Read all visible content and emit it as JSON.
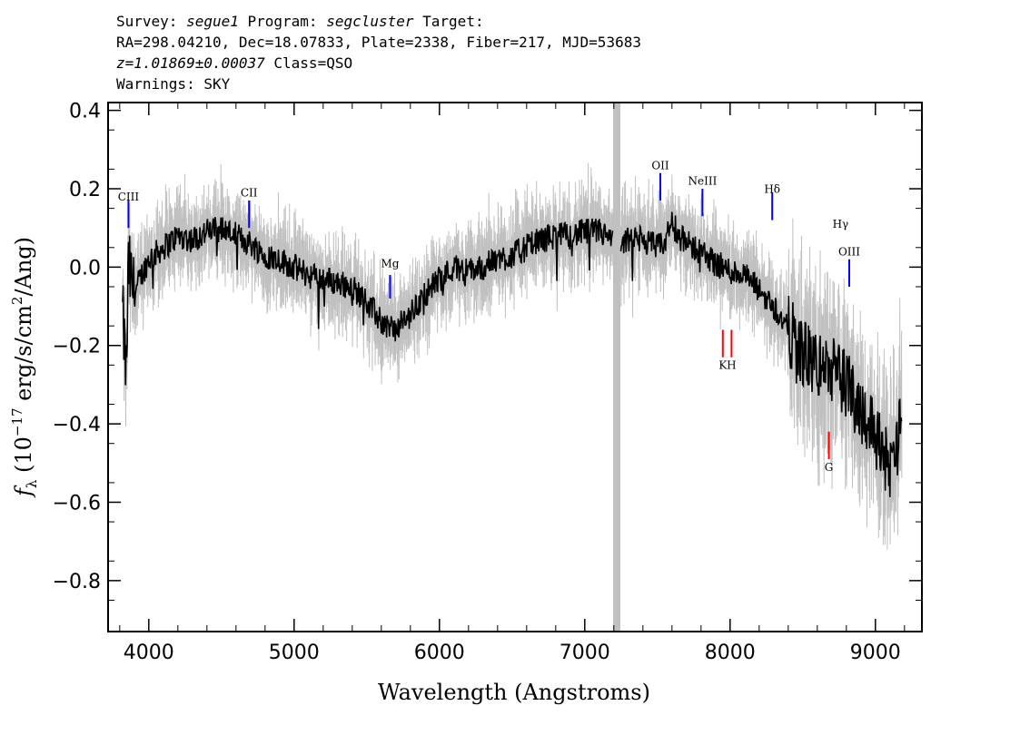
{
  "header": {
    "line1_prefix": "Survey: ",
    "survey": "segue1",
    "line1_mid": " Program: ",
    "program": "segcluster",
    "line1_suffix": " Target:",
    "line2": "RA=298.04210, Dec=18.07833, Plate=2338, Fiber=217, MJD=53683",
    "redshift": "z=1.01869±0.00037",
    "class_text": " Class=QSO",
    "warnings": "Warnings: SKY"
  },
  "chart_data": {
    "type": "line",
    "xlabel": "Wavelength (Angstroms)",
    "ylabel": "f_λ (10^-17 erg/s/cm²/Ang)",
    "xlim": [
      3720,
      9320
    ],
    "ylim": [
      -0.93,
      0.42
    ],
    "x_ticks": [
      4000,
      5000,
      6000,
      7000,
      8000,
      9000
    ],
    "y_ticks": [
      -0.8,
      -0.6,
      -0.4,
      -0.2,
      0.0,
      0.2,
      0.4
    ],
    "y_tick_labels": [
      "−0.8",
      "−0.6",
      "−0.4",
      "−0.2",
      "0.0",
      "0.2",
      "0.4"
    ],
    "masked_region": [
      7195,
      7245
    ],
    "series": [
      {
        "role": "spectrum",
        "color": "#000000",
        "points": [
          [
            3820,
            -0.12
          ],
          [
            3845,
            -0.28
          ],
          [
            3860,
            0.0
          ],
          [
            3900,
            -0.07
          ],
          [
            3950,
            -0.02
          ],
          [
            4000,
            0.02
          ],
          [
            4100,
            0.05
          ],
          [
            4200,
            0.08
          ],
          [
            4300,
            0.07
          ],
          [
            4400,
            0.09
          ],
          [
            4500,
            0.1
          ],
          [
            4600,
            0.08
          ],
          [
            4700,
            0.06
          ],
          [
            4800,
            0.03
          ],
          [
            4900,
            0.02
          ],
          [
            5000,
            0.0
          ],
          [
            5100,
            -0.02
          ],
          [
            5200,
            -0.03
          ],
          [
            5300,
            -0.04
          ],
          [
            5400,
            -0.05
          ],
          [
            5500,
            -0.09
          ],
          [
            5600,
            -0.14
          ],
          [
            5700,
            -0.16
          ],
          [
            5800,
            -0.12
          ],
          [
            5900,
            -0.07
          ],
          [
            6000,
            -0.03
          ],
          [
            6100,
            0.0
          ],
          [
            6200,
            -0.01
          ],
          [
            6300,
            0.0
          ],
          [
            6400,
            0.02
          ],
          [
            6500,
            0.03
          ],
          [
            6600,
            0.05
          ],
          [
            6700,
            0.07
          ],
          [
            6800,
            0.08
          ],
          [
            6900,
            0.08
          ],
          [
            7000,
            0.09
          ],
          [
            7100,
            0.09
          ],
          [
            7150,
            0.08
          ],
          [
            7190,
            0.06
          ],
          [
            7250,
            0.05
          ],
          [
            7300,
            0.07
          ],
          [
            7400,
            0.07
          ],
          [
            7500,
            0.05
          ],
          [
            7550,
            0.06
          ],
          [
            7600,
            0.12
          ],
          [
            7650,
            0.08
          ],
          [
            7700,
            0.06
          ],
          [
            7800,
            0.04
          ],
          [
            7900,
            0.01
          ],
          [
            8000,
            -0.01
          ],
          [
            8100,
            -0.02
          ],
          [
            8200,
            -0.06
          ],
          [
            8300,
            -0.1
          ],
          [
            8400,
            -0.16
          ],
          [
            8500,
            -0.22
          ],
          [
            8600,
            -0.25
          ],
          [
            8700,
            -0.26
          ],
          [
            8800,
            -0.3
          ],
          [
            8900,
            -0.36
          ],
          [
            9000,
            -0.42
          ],
          [
            9100,
            -0.52
          ],
          [
            9180,
            -0.4
          ]
        ]
      },
      {
        "role": "error",
        "color": "#c0c0c0"
      }
    ],
    "line_markers": [
      {
        "label": "CIII",
        "x": 3860,
        "y_low": 0.1,
        "y_high": 0.17,
        "label_y": 0.17,
        "color": "#0000ff"
      },
      {
        "label": "CII",
        "x": 4690,
        "y_low": 0.1,
        "y_high": 0.17,
        "label_y": 0.18,
        "color": "#0000ff"
      },
      {
        "label": "Mg",
        "x": 5660,
        "y_low": -0.08,
        "y_high": -0.02,
        "label_y": -0.0,
        "color": "#0000ff"
      },
      {
        "label": "OII",
        "x": 7520,
        "y_low": 0.17,
        "y_high": 0.24,
        "label_y": 0.25,
        "color": "#0000ff"
      },
      {
        "label": "NeIII",
        "x": 7810,
        "y_low": 0.13,
        "y_high": 0.2,
        "label_y": 0.21,
        "color": "#0000ff"
      },
      {
        "label": "Hδ",
        "x": 8290,
        "y_low": 0.12,
        "y_high": 0.19,
        "label_y": 0.19,
        "color": "#0000ff"
      },
      {
        "label": "Hγ",
        "x": 8760,
        "y_low": 0.08,
        "y_high": 0.08,
        "label_y": 0.1,
        "color": "#0000ff"
      },
      {
        "label": "OIII",
        "x": 8820,
        "y_low": -0.05,
        "y_high": 0.02,
        "label_y": 0.03,
        "color": "#0000ff"
      },
      {
        "label": "K",
        "x": 7950,
        "y_low": -0.23,
        "y_high": -0.16,
        "label_y": -0.26,
        "color": "#ff0000"
      },
      {
        "label": "H",
        "x": 8010,
        "y_low": -0.23,
        "y_high": -0.16,
        "label_y": -0.26,
        "color": "#ff0000"
      },
      {
        "label": "G",
        "x": 8680,
        "y_low": -0.49,
        "y_high": -0.42,
        "label_y": -0.52,
        "color": "#ff0000"
      }
    ]
  }
}
